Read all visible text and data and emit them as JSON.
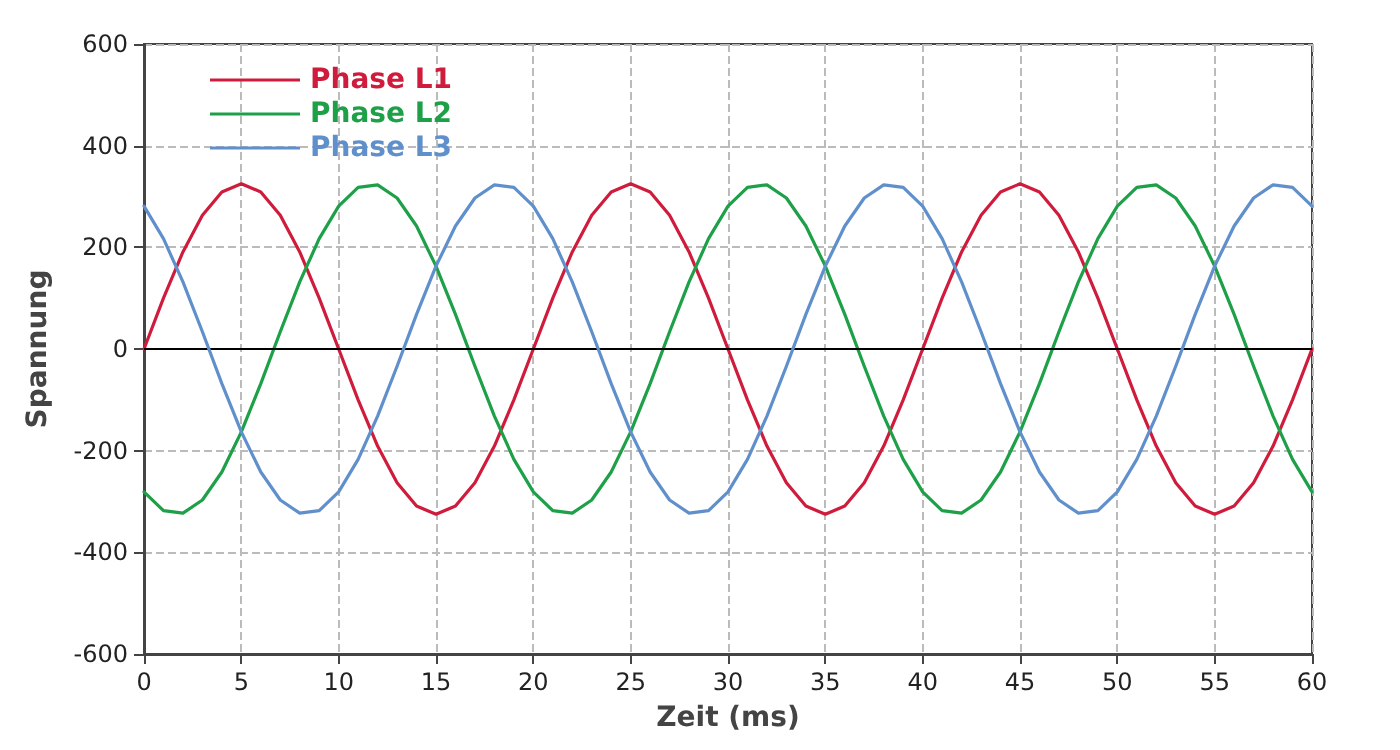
{
  "chart_data": {
    "type": "line",
    "xlabel": "Zeit (ms)",
    "ylabel": "Spannung",
    "x": [
      0,
      1,
      2,
      3,
      4,
      5,
      6,
      7,
      8,
      9,
      10,
      11,
      12,
      13,
      14,
      15,
      16,
      17,
      18,
      19,
      20,
      21,
      22,
      23,
      24,
      25,
      26,
      27,
      28,
      29,
      30,
      31,
      32,
      33,
      34,
      35,
      36,
      37,
      38,
      39,
      40,
      41,
      42,
      43,
      44,
      45,
      46,
      47,
      48,
      49,
      50,
      51,
      52,
      53,
      54,
      55,
      56,
      57,
      58,
      59,
      60
    ],
    "series": [
      {
        "name": "Phase L1",
        "color": "#d01c3c",
        "values": [
          0,
          100,
          191,
          263,
          309,
          325,
          309,
          263,
          191,
          100,
          0,
          -100,
          -191,
          -263,
          -309,
          -325,
          -309,
          -263,
          -191,
          -100,
          0,
          100,
          191,
          263,
          309,
          325,
          309,
          263,
          191,
          100,
          0,
          -100,
          -191,
          -263,
          -309,
          -325,
          -309,
          -263,
          -191,
          -100,
          0,
          100,
          191,
          263,
          309,
          325,
          309,
          263,
          191,
          100,
          0,
          -100,
          -191,
          -263,
          -309,
          -325,
          -309,
          -263,
          -191,
          -100,
          0
        ]
      },
      {
        "name": "Phase L2",
        "color": "#1ea048",
        "values": [
          -281,
          -318,
          -323,
          -297,
          -242,
          -163,
          -68,
          34,
          132,
          217,
          281,
          318,
          323,
          297,
          242,
          163,
          68,
          -34,
          -132,
          -217,
          -281,
          -318,
          -323,
          -297,
          -242,
          -163,
          -68,
          34,
          132,
          217,
          281,
          318,
          323,
          297,
          242,
          163,
          68,
          -34,
          -132,
          -217,
          -281,
          -318,
          -323,
          -297,
          -242,
          -163,
          -68,
          34,
          132,
          217,
          281,
          318,
          323,
          297,
          242,
          163,
          68,
          -34,
          -132,
          -217,
          -281
        ]
      },
      {
        "name": "Phase L3",
        "color": "#6090cc",
        "values": [
          281,
          217,
          132,
          34,
          -68,
          -163,
          -242,
          -297,
          -323,
          -318,
          -281,
          -217,
          -132,
          -34,
          68,
          163,
          242,
          297,
          323,
          318,
          281,
          217,
          132,
          34,
          -68,
          -163,
          -242,
          -297,
          -323,
          -318,
          -281,
          -217,
          -132,
          -34,
          68,
          163,
          242,
          297,
          323,
          318,
          281,
          217,
          132,
          34,
          -68,
          -163,
          -242,
          -297,
          -323,
          -318,
          -281,
          -217,
          -132,
          -34,
          68,
          163,
          242,
          297,
          323,
          318,
          281
        ]
      }
    ],
    "xlim": [
      0,
      60
    ],
    "xticks": [
      0,
      5,
      10,
      15,
      20,
      25,
      30,
      35,
      40,
      45,
      50,
      55,
      60
    ],
    "ylim": [
      -600,
      600
    ],
    "yticks": [
      -600,
      -400,
      -200,
      0,
      200,
      400,
      600
    ],
    "ref_lines": [
      {
        "axis": "y",
        "value": 0,
        "color": "#000000",
        "line_style": "solid"
      }
    ],
    "grid": true,
    "legend": "top left",
    "marker": "none",
    "line_style": "solid"
  }
}
